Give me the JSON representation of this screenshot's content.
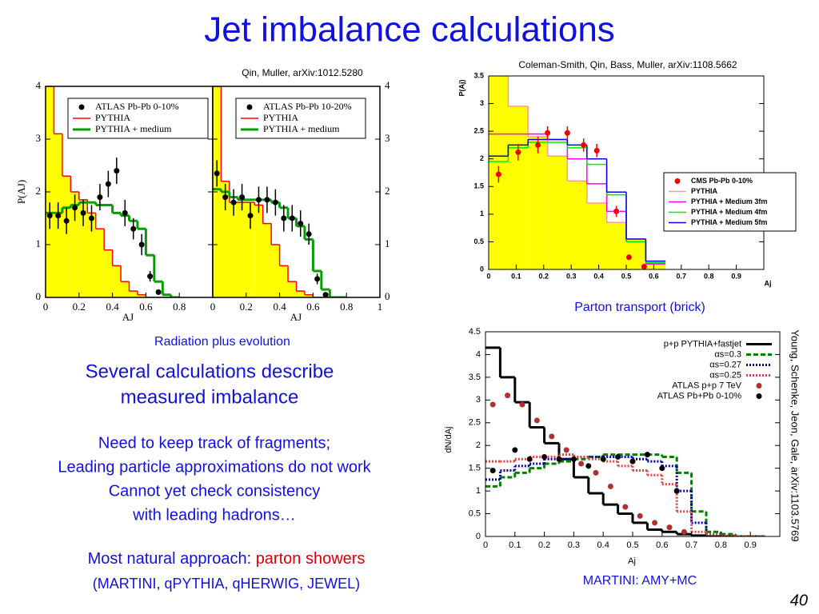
{
  "title": "Jet imbalance calculations",
  "left_source": "Qin, Muller, arXiv:1012.5280",
  "right_source": "Coleman-Smith, Qin, Bass, Muller, arXiv:1108.5662",
  "left_caption": "Radiation plus evolution",
  "right_caption": "Parton transport (brick)",
  "bottom_caption": "MARTINI: AMY+MC",
  "side_source": "Young, Schenke, Jeon, Gale, arXiv:1103.5769",
  "summary": [
    "Several calculations describe",
    "measured imbalance"
  ],
  "points": [
    "Need to keep track of fragments;",
    "Leading particle approximations do not work",
    "Cannot yet check consistency",
    "with leading hadrons…"
  ],
  "approach": {
    "text": "Most natural approach: ",
    "highlight": "parton showers"
  },
  "examples": "(MARTINI, qPYTHIA, qHERWIG, JEWEL)",
  "page": "40",
  "chart_data": [
    {
      "type": "step",
      "xlim": [
        0,
        1
      ],
      "ylim": [
        0,
        4
      ],
      "xticks": [
        0,
        0.2,
        0.4,
        0.6,
        0.8
      ],
      "yticks": [
        0,
        1,
        2,
        3,
        4
      ],
      "xlabel": "AJ",
      "ylabel": "P(AJ)",
      "legend": "upper right",
      "series": [
        {
          "name": "ATLAS Pb-Pb 0-10%",
          "kind": "points",
          "color": "#000000",
          "x": [
            0.025,
            0.075,
            0.125,
            0.175,
            0.225,
            0.275,
            0.325,
            0.375,
            0.425,
            0.475,
            0.525,
            0.575,
            0.625,
            0.675
          ],
          "values": [
            1.55,
            1.55,
            1.45,
            1.7,
            1.6,
            1.5,
            1.9,
            2.15,
            2.4,
            1.6,
            1.3,
            1.0,
            0.4,
            0.1
          ],
          "errors": [
            0.25,
            0.25,
            0.25,
            0.25,
            0.25,
            0.25,
            0.25,
            0.25,
            0.25,
            0.25,
            0.2,
            0.2,
            0.1,
            0.05
          ]
        },
        {
          "name": "PYTHIA",
          "kind": "step",
          "color": "#ff0000",
          "fill": "#ffff00",
          "bins": [
            0,
            0.05,
            0.1,
            0.15,
            0.2,
            0.25,
            0.3,
            0.35,
            0.4,
            0.45,
            0.5,
            0.55,
            0.6,
            0.65,
            0.7,
            0.75,
            0.8
          ],
          "values": [
            4,
            3.1,
            2.3,
            2.0,
            1.85,
            1.6,
            1.3,
            0.9,
            0.6,
            0.3,
            0.12,
            0.05,
            0,
            0,
            0,
            0
          ]
        },
        {
          "name": "PYTHIA + medium",
          "kind": "step",
          "color": "#00a000",
          "width": 3,
          "bins": [
            0,
            0.05,
            0.1,
            0.15,
            0.2,
            0.25,
            0.3,
            0.35,
            0.4,
            0.45,
            0.5,
            0.55,
            0.6,
            0.65,
            0.7,
            0.75,
            0.8
          ],
          "values": [
            1.6,
            1.6,
            1.7,
            1.75,
            1.8,
            1.8,
            1.75,
            1.75,
            1.6,
            1.55,
            1.45,
            1.3,
            0.8,
            0.3,
            0.05,
            0
          ]
        }
      ]
    },
    {
      "type": "step",
      "xlim": [
        0,
        1
      ],
      "ylim": [
        0,
        4
      ],
      "xticks": [
        0,
        0.2,
        0.4,
        0.6,
        0.8,
        1
      ],
      "yticks": [
        0,
        1,
        2,
        3,
        4
      ],
      "xlabel": "AJ",
      "legend": "upper right",
      "series": [
        {
          "name": "ATLAS Pb-Pb 10-20%",
          "kind": "points",
          "color": "#000000",
          "x": [
            0.025,
            0.075,
            0.125,
            0.175,
            0.225,
            0.275,
            0.325,
            0.375,
            0.425,
            0.475,
            0.525,
            0.575,
            0.625,
            0.675
          ],
          "values": [
            2.35,
            1.9,
            1.8,
            1.9,
            1.55,
            1.85,
            1.85,
            1.8,
            1.5,
            1.5,
            1.4,
            1.2,
            0.35,
            0.05
          ],
          "errors": [
            0.25,
            0.25,
            0.25,
            0.25,
            0.25,
            0.25,
            0.25,
            0.25,
            0.25,
            0.25,
            0.25,
            0.2,
            0.1,
            0.05
          ]
        },
        {
          "name": "PYTHIA",
          "kind": "step",
          "color": "#ff0000",
          "fill": "#ffff00",
          "bins": [
            0,
            0.05,
            0.1,
            0.15,
            0.2,
            0.25,
            0.3,
            0.35,
            0.4,
            0.45,
            0.5,
            0.55,
            0.6,
            0.65,
            0.7,
            0.75,
            0.8
          ],
          "values": [
            4,
            2.2,
            1.8,
            1.8,
            1.8,
            1.75,
            1.4,
            1.0,
            0.6,
            0.3,
            0.12,
            0.05,
            0,
            0,
            0,
            0
          ]
        },
        {
          "name": "PYTHIA + medium",
          "kind": "step",
          "color": "#00a000",
          "width": 3,
          "bins": [
            0,
            0.05,
            0.1,
            0.15,
            0.2,
            0.25,
            0.3,
            0.35,
            0.4,
            0.45,
            0.5,
            0.55,
            0.6,
            0.65,
            0.7,
            0.75,
            0.8
          ],
          "values": [
            2.05,
            2.0,
            1.9,
            1.85,
            1.85,
            1.85,
            1.85,
            1.8,
            1.7,
            1.5,
            1.35,
            1.1,
            0.5,
            0.15,
            0,
            0
          ]
        }
      ]
    },
    {
      "type": "step",
      "xlim": [
        0,
        1
      ],
      "ylim": [
        0,
        3.5
      ],
      "xticks": [
        0,
        0.1,
        0.2,
        0.3,
        0.4,
        0.5,
        0.6,
        0.7,
        0.8,
        0.9
      ],
      "yticks": [
        0,
        0.5,
        1,
        1.5,
        2,
        2.5,
        3,
        3.5
      ],
      "xlabel": "Aj",
      "ylabel": "P(Aj)",
      "legend": "center right",
      "series": [
        {
          "name": "CMS Pb-Pb 0-10%",
          "kind": "points",
          "color": "#ee0000",
          "x": [
            0.036,
            0.107,
            0.179,
            0.214,
            0.286,
            0.345,
            0.393,
            0.464,
            0.51,
            0.565
          ],
          "values": [
            1.72,
            2.12,
            2.25,
            2.47,
            2.47,
            2.25,
            2.15,
            1.05,
            0.22,
            0.05
          ],
          "errors": [
            0.15,
            0.15,
            0.15,
            0.12,
            0.12,
            0.12,
            0.12,
            0.1,
            0.05,
            0.03
          ]
        },
        {
          "name": "PYTHIA",
          "kind": "step",
          "color": "#ff9999",
          "fill": "#ffff00",
          "bins": [
            0,
            0.071,
            0.143,
            0.214,
            0.286,
            0.357,
            0.429,
            0.5,
            0.571,
            0.643
          ],
          "values": [
            3.6,
            2.95,
            2.4,
            2.05,
            1.6,
            1.2,
            0.85,
            0.55,
            0.15
          ]
        },
        {
          "name": "PYTHIA + Medium 3fm",
          "kind": "step",
          "color": "#ff00ff",
          "bins": [
            0,
            0.071,
            0.143,
            0.214,
            0.286,
            0.357,
            0.429,
            0.5,
            0.571,
            0.643
          ],
          "values": [
            2.45,
            2.45,
            2.45,
            2.35,
            2.0,
            1.55,
            1.05,
            0.5,
            0.1
          ]
        },
        {
          "name": "PYTHIA + Medium 4fm",
          "kind": "step",
          "color": "#00ee00",
          "bins": [
            0,
            0.071,
            0.143,
            0.214,
            0.286,
            0.357,
            0.429,
            0.5,
            0.571,
            0.643
          ],
          "values": [
            1.95,
            2.2,
            2.3,
            2.3,
            2.2,
            1.9,
            1.35,
            0.5,
            0.12
          ]
        },
        {
          "name": "PYTHIA + Medium 5fm",
          "kind": "step",
          "color": "#0000ee",
          "bins": [
            0,
            0.071,
            0.143,
            0.214,
            0.286,
            0.357,
            0.429,
            0.5,
            0.571,
            0.643
          ],
          "values": [
            2.05,
            2.25,
            2.35,
            2.35,
            2.25,
            2.0,
            1.4,
            0.55,
            0.15
          ]
        }
      ]
    },
    {
      "type": "step",
      "xlim": [
        0,
        1
      ],
      "ylim": [
        0,
        4.5
      ],
      "xticks": [
        0,
        0.1,
        0.2,
        0.3,
        0.4,
        0.5,
        0.6,
        0.7,
        0.8,
        0.9
      ],
      "yticks": [
        0,
        0.5,
        1,
        1.5,
        2,
        2.5,
        3,
        3.5,
        4,
        4.5
      ],
      "xlabel": "Aj",
      "ylabel": "dN/dAj",
      "legend": "upper right",
      "series": [
        {
          "name": "p+p PYTHIA+fastjet",
          "kind": "step",
          "color": "#000000",
          "width": 3,
          "bins": [
            0,
            0.05,
            0.1,
            0.15,
            0.2,
            0.25,
            0.3,
            0.35,
            0.4,
            0.45,
            0.5,
            0.55,
            0.6,
            0.65,
            0.7,
            0.75,
            0.8,
            0.85,
            0.9,
            0.95
          ],
          "values": [
            4.15,
            3.5,
            2.95,
            2.4,
            2.05,
            1.7,
            1.3,
            0.95,
            0.7,
            0.5,
            0.3,
            0.15,
            0.1,
            0.05,
            0.02,
            0,
            0,
            0,
            0
          ]
        },
        {
          "name": "αs=0.3",
          "kind": "step",
          "color": "#008000",
          "width": 3,
          "dash": "dashed",
          "bins": [
            0,
            0.05,
            0.1,
            0.15,
            0.2,
            0.25,
            0.3,
            0.35,
            0.4,
            0.45,
            0.5,
            0.55,
            0.6,
            0.65,
            0.7,
            0.75,
            0.8,
            0.85,
            0.9,
            0.95
          ],
          "values": [
            1.1,
            1.3,
            1.4,
            1.5,
            1.6,
            1.65,
            1.7,
            1.75,
            1.8,
            1.8,
            1.8,
            1.8,
            1.75,
            1.4,
            0.55,
            0.1,
            0.05,
            0,
            0
          ]
        },
        {
          "name": "αs=0.27",
          "kind": "step",
          "color": "#0000aa",
          "width": 3,
          "dash": "dotted",
          "bins": [
            0,
            0.05,
            0.1,
            0.15,
            0.2,
            0.25,
            0.3,
            0.35,
            0.4,
            0.45,
            0.5,
            0.55,
            0.6,
            0.65,
            0.7,
            0.75,
            0.8,
            0.85,
            0.9,
            0.95
          ],
          "values": [
            1.25,
            1.45,
            1.55,
            1.6,
            1.7,
            1.7,
            1.75,
            1.75,
            1.75,
            1.75,
            1.7,
            1.65,
            1.55,
            1.0,
            0.3,
            0.05,
            0.02,
            0,
            0
          ]
        },
        {
          "name": "αs=0.25",
          "kind": "step",
          "color": "#dd4444",
          "width": 3,
          "dash": "dotted",
          "bins": [
            0,
            0.05,
            0.1,
            0.15,
            0.2,
            0.25,
            0.3,
            0.35,
            0.4,
            0.45,
            0.5,
            0.55,
            0.6,
            0.65,
            0.7,
            0.75,
            0.8,
            0.85,
            0.9,
            0.95
          ],
          "values": [
            1.65,
            1.65,
            1.7,
            1.75,
            1.75,
            1.8,
            1.75,
            1.7,
            1.65,
            1.55,
            1.45,
            1.35,
            1.15,
            0.55,
            0.1,
            0.05,
            0.02,
            0,
            0
          ]
        },
        {
          "name": "ATLAS p+p 7 TeV",
          "kind": "points",
          "color": "#b03030",
          "x": [
            0.025,
            0.075,
            0.125,
            0.175,
            0.225,
            0.275,
            0.325,
            0.375,
            0.425,
            0.475,
            0.525,
            0.575,
            0.625,
            0.675
          ],
          "values": [
            2.9,
            3.1,
            2.9,
            2.55,
            2.2,
            1.9,
            1.6,
            1.4,
            1.1,
            0.65,
            0.45,
            0.3,
            0.2,
            0.1
          ]
        },
        {
          "name": "ATLAS Pb+Pb 0-10%",
          "kind": "points",
          "color": "#000000",
          "x": [
            0.025,
            0.1,
            0.15,
            0.2,
            0.25,
            0.3,
            0.35,
            0.4,
            0.45,
            0.5,
            0.55,
            0.6,
            0.65
          ],
          "values": [
            1.45,
            1.9,
            1.7,
            1.75,
            1.7,
            1.7,
            1.55,
            1.7,
            1.75,
            1.65,
            1.8,
            1.5,
            1.0
          ]
        }
      ]
    }
  ]
}
